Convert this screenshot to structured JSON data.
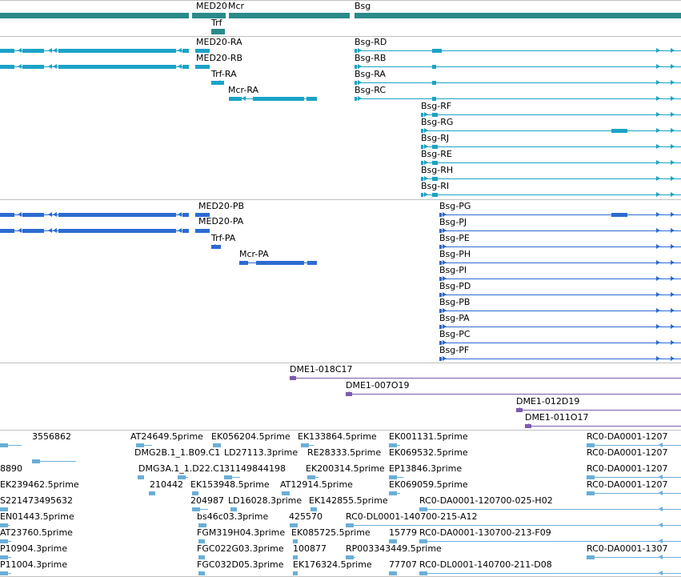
{
  "colors": {
    "gene": "#2a8a8a",
    "transcript": "#1ba3c6",
    "protein": "#2d6bd1",
    "clone": "#7a5bb0",
    "est": "#6aaed6",
    "divider": "#c0c0c0"
  },
  "gene_track": {
    "labels": [
      "MED20",
      "Mcr",
      "Bsg",
      "Trf"
    ]
  },
  "transcript_track": {
    "labels": [
      "MED20-RA",
      "MED20-RB",
      "Trf-RA",
      "Mcr-RA",
      "Bsg-RD",
      "Bsg-RB",
      "Bsg-RA",
      "Bsg-RC",
      "Bsg-RF",
      "Bsg-RG",
      "Bsg-RJ",
      "Bsg-RE",
      "Bsg-RH",
      "Bsg-RI"
    ]
  },
  "protein_track": {
    "labels": [
      "MED20-PB",
      "MED20-PA",
      "Trf-PA",
      "Mcr-PA",
      "Bsg-PG",
      "Bsg-PJ",
      "Bsg-PE",
      "Bsg-PH",
      "Bsg-PI",
      "Bsg-PD",
      "Bsg-PB",
      "Bsg-PA",
      "Bsg-PC",
      "Bsg-PF"
    ]
  },
  "clone_track": {
    "labels": [
      "DME1-018C17",
      "DME1-007O19",
      "DME1-012D19",
      "DME1-011O17"
    ]
  },
  "est_track": {
    "labels": [
      "3556862",
      "AT24649.5prime",
      "EK056204.5prime",
      "EK133864.5prime",
      "EK001131.5prime",
      "RC0-DA0001-1207",
      "8890",
      "DMG2B.1_1.B09.C1",
      "LD27113.3prime",
      "RE28333.5prime",
      "EK069532.5prime",
      "RC0-DA0001-1207",
      "DMG3A.1_1.D22.C1",
      "31149844198",
      "EK200314.5prime",
      "EP13846.3prime",
      "RC0-DA0001-1207",
      "EK239462.5prime",
      "210442",
      "EK153948.5prime",
      "AT12914.5prime",
      "EK069059.5prime",
      "RC0-DA0001-1207",
      "S221473495632",
      "204987",
      "LD16028.3prime",
      "EK142855.5prime",
      "RC0-DA0001-120700-025-H02",
      "EN01443.5prime",
      "bs46c03.3prime",
      "425570",
      "RC0-DL0001-140700-215-A12",
      "AT23760.5prime",
      "FGM319H04.3prime",
      "EK085725.5prime",
      "15779",
      "RC0-DA0001-130700-213-F09",
      "P10904.3prime",
      "FGC022G03.3prime",
      "100877",
      "RP003343449.5prime",
      "RC0-DA0001-1307",
      "P11004.3prime",
      "FGC032D05.3prime",
      "EK176324.5prime",
      "77707",
      "RC0-DL0001-140700-211-D08"
    ]
  }
}
